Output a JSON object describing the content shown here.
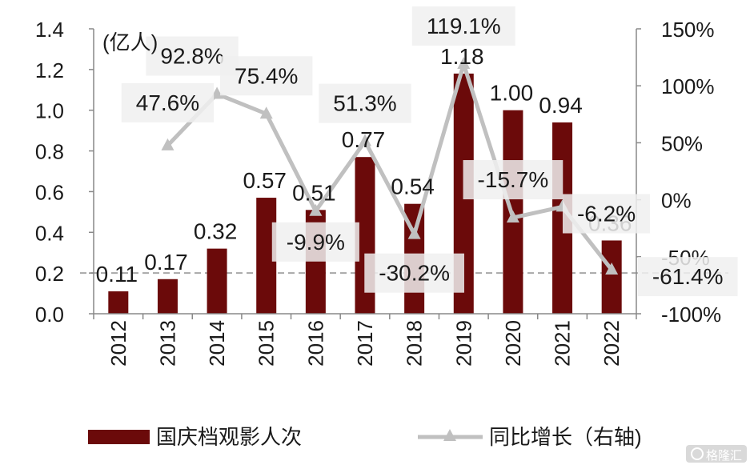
{
  "chart_data": {
    "type": "bar",
    "unit_label": "(亿人)",
    "categories": [
      "2012",
      "2013",
      "2014",
      "2015",
      "2016",
      "2017",
      "2018",
      "2019",
      "2020",
      "2021",
      "2022"
    ],
    "series": [
      {
        "name": "国庆档观影人次",
        "axis": "left",
        "type": "bar",
        "values": [
          0.11,
          0.17,
          0.32,
          0.57,
          0.51,
          0.77,
          0.54,
          1.18,
          1.0,
          0.94,
          0.36
        ],
        "labels": [
          "0.11",
          "0.17",
          "0.32",
          "0.57",
          "0.51",
          "0.77",
          "0.54",
          "1.18",
          "1.00",
          "0.94",
          "0.36"
        ]
      },
      {
        "name": "同比增长（右轴)",
        "axis": "right",
        "type": "line",
        "values": [
          null,
          47.6,
          92.8,
          75.4,
          -9.9,
          51.3,
          -30.2,
          119.1,
          -15.7,
          -6.2,
          -61.4
        ],
        "labels": [
          null,
          "47.6%",
          "92.8%",
          "75.4%",
          "-9.9%",
          "51.3%",
          "-30.2%",
          "119.1%",
          "-15.7%",
          "-6.2%",
          "-61.4%"
        ]
      }
    ],
    "y_left": {
      "range": [
        0,
        1.4
      ],
      "ticks": [
        "0.0",
        "0.2",
        "0.4",
        "0.6",
        "0.8",
        "1.0",
        "1.2",
        "1.4"
      ]
    },
    "y_right": {
      "range": [
        -100,
        150
      ],
      "ticks": [
        "-100%",
        "-50%",
        "0%",
        "50%",
        "100%",
        "150%"
      ]
    },
    "reference_line": {
      "axis": "left",
      "value": 0.2
    },
    "grid": false,
    "legend": "bottom",
    "colors": {
      "bar": "#6b0a0a",
      "line": "#c0c0c0",
      "label_bg": "#f0f0f0",
      "axis": "#888888",
      "text": "#1a1a1a"
    }
  },
  "watermark": "格隆汇"
}
